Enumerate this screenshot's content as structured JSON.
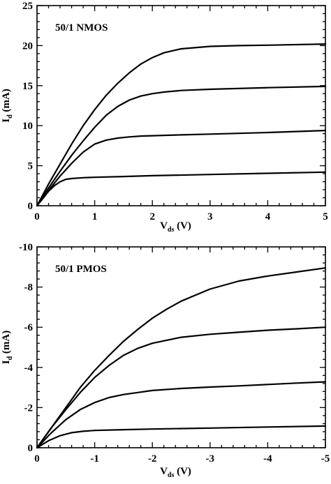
{
  "chart_data": [
    {
      "type": "line",
      "annotation": "50/1  NMOS",
      "ylabel": "I_d (mA)",
      "ylabel_main": "I",
      "ylabel_sub": "d",
      "ylabel_rest": " (mA)",
      "xlabel": "V_ds (V)",
      "xlabel_main": "V",
      "xlabel_sub": "ds",
      "xlabel_rest": " (V)",
      "xlim": [
        0,
        5
      ],
      "ylim": [
        0,
        25
      ],
      "xticks": [
        0,
        1,
        2,
        3,
        4,
        5
      ],
      "xtick_labels": [
        "0",
        "1",
        "2",
        "3",
        "4",
        "5"
      ],
      "yticks": [
        0,
        5,
        10,
        15,
        20,
        25
      ],
      "ytick_labels": [
        "0",
        "5",
        "10",
        "15",
        "20",
        "25"
      ],
      "grid": false,
      "series": [
        {
          "x": [
            0,
            0.1,
            0.2,
            0.3,
            0.4,
            0.5,
            0.6,
            0.8,
            1.0,
            1.5,
            2.0,
            3.0,
            4.0,
            5.0
          ],
          "values": [
            0,
            0.9,
            1.8,
            2.5,
            3.0,
            3.3,
            3.4,
            3.5,
            3.55,
            3.65,
            3.75,
            3.9,
            4.05,
            4.2
          ]
        },
        {
          "x": [
            0,
            0.2,
            0.4,
            0.6,
            0.8,
            1.0,
            1.2,
            1.4,
            1.6,
            1.8,
            2.0,
            2.5,
            3.0,
            4.0,
            5.0
          ],
          "values": [
            0,
            1.9,
            3.7,
            5.3,
            6.7,
            7.7,
            8.2,
            8.45,
            8.6,
            8.7,
            8.75,
            8.85,
            8.95,
            9.15,
            9.4
          ]
        },
        {
          "x": [
            0,
            0.2,
            0.4,
            0.6,
            0.8,
            1.0,
            1.2,
            1.4,
            1.6,
            1.8,
            2.0,
            2.2,
            2.5,
            3.0,
            4.0,
            5.0
          ],
          "values": [
            0,
            2.2,
            4.3,
            6.3,
            8.1,
            9.8,
            11.3,
            12.4,
            13.2,
            13.7,
            14.0,
            14.2,
            14.4,
            14.55,
            14.75,
            14.9
          ]
        },
        {
          "x": [
            0,
            0.2,
            0.4,
            0.6,
            0.8,
            1.0,
            1.2,
            1.4,
            1.6,
            1.8,
            2.0,
            2.2,
            2.5,
            3.0,
            3.5,
            4.0,
            5.0
          ],
          "values": [
            0,
            2.7,
            5.2,
            7.7,
            10.0,
            12.0,
            13.8,
            15.3,
            16.6,
            17.7,
            18.5,
            19.1,
            19.6,
            19.9,
            20.0,
            20.05,
            20.2
          ]
        }
      ]
    },
    {
      "type": "line",
      "annotation": "50/1  PMOS",
      "ylabel": "I_d (mA)",
      "ylabel_main": "I",
      "ylabel_sub": "d",
      "ylabel_rest": " (mA)",
      "xlabel": "V_ds (V)",
      "xlabel_main": "V",
      "xlabel_sub": "ds",
      "xlabel_rest": " (V)",
      "xlim": [
        0,
        -5
      ],
      "ylim": [
        0,
        -10
      ],
      "xticks": [
        0,
        -1,
        -2,
        -3,
        -4,
        -5
      ],
      "xtick_labels": [
        "0",
        "-1",
        "-2",
        "-3",
        "-4",
        "-5"
      ],
      "yticks": [
        0,
        -2,
        -4,
        -6,
        -8,
        -10
      ],
      "ytick_labels": [
        "0",
        "-2",
        "-4",
        "-6",
        "-8",
        "-10"
      ],
      "grid": false,
      "series": [
        {
          "x": [
            0,
            -0.2,
            -0.4,
            -0.6,
            -0.8,
            -1.0,
            -1.5,
            -2.0,
            -3.0,
            -4.0,
            -5.0
          ],
          "values": [
            0,
            -0.35,
            -0.6,
            -0.75,
            -0.82,
            -0.86,
            -0.9,
            -0.93,
            -0.98,
            -1.03,
            -1.08
          ]
        },
        {
          "x": [
            0,
            -0.25,
            -0.5,
            -0.75,
            -1.0,
            -1.25,
            -1.5,
            -1.75,
            -2.0,
            -2.5,
            -3.0,
            -3.5,
            -4.0,
            -4.5,
            -5.0
          ],
          "values": [
            0,
            -0.75,
            -1.4,
            -1.9,
            -2.25,
            -2.5,
            -2.65,
            -2.75,
            -2.85,
            -2.95,
            -3.02,
            -3.08,
            -3.15,
            -3.22,
            -3.28
          ]
        },
        {
          "x": [
            0,
            -0.25,
            -0.5,
            -0.75,
            -1.0,
            -1.25,
            -1.5,
            -1.75,
            -2.0,
            -2.5,
            -3.0,
            -3.5,
            -4.0,
            -4.5,
            -5.0
          ],
          "values": [
            0,
            -1.0,
            -1.9,
            -2.75,
            -3.5,
            -4.1,
            -4.6,
            -4.95,
            -5.2,
            -5.5,
            -5.65,
            -5.75,
            -5.85,
            -5.92,
            -6.0
          ]
        },
        {
          "x": [
            0,
            -0.25,
            -0.5,
            -0.75,
            -1.0,
            -1.25,
            -1.5,
            -1.75,
            -2.0,
            -2.25,
            -2.5,
            -2.75,
            -3.0,
            -3.5,
            -4.0,
            -4.5,
            -5.0
          ],
          "values": [
            0,
            -1.0,
            -2.0,
            -3.0,
            -3.85,
            -4.6,
            -5.3,
            -5.9,
            -6.45,
            -6.9,
            -7.3,
            -7.6,
            -7.9,
            -8.3,
            -8.55,
            -8.75,
            -8.95
          ]
        }
      ]
    }
  ]
}
